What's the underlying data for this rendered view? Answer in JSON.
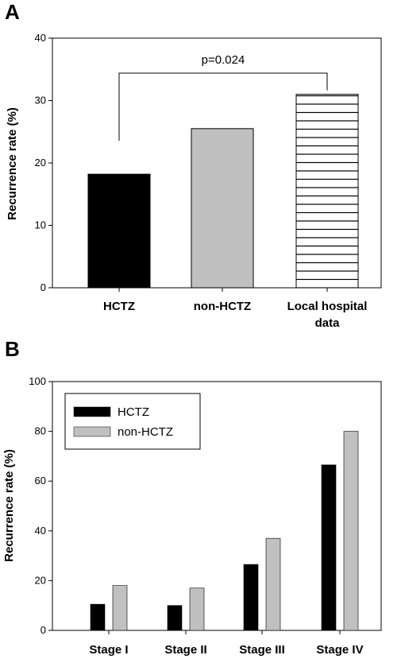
{
  "chart_data": [
    {
      "panel": "A",
      "type": "bar",
      "categories": [
        [
          "HCTZ"
        ],
        [
          "non-HCTZ"
        ],
        [
          "Local hospital",
          "data"
        ]
      ],
      "values": [
        18.2,
        25.5,
        31.0
      ],
      "colors": [
        "#000000",
        "#c0c0c0",
        "#ffffff"
      ],
      "patterns": [
        "solid",
        "solid",
        "horizontal-lines"
      ],
      "ylabel": "Recurrence rate (%)",
      "xlabel": "",
      "ylim": [
        0,
        40
      ],
      "yticks": [
        0,
        10,
        20,
        30,
        40
      ],
      "grid": false,
      "annotation": {
        "text": "p=0.024",
        "between": [
          0,
          2
        ]
      }
    },
    {
      "panel": "B",
      "type": "bar",
      "categories": [
        "Stage I",
        "Stage II",
        "Stage III",
        "Stage IV"
      ],
      "series": [
        {
          "name": "HCTZ",
          "values": [
            10.5,
            10.0,
            26.5,
            66.5
          ],
          "color": "#000000"
        },
        {
          "name": "non-HCTZ",
          "values": [
            18.0,
            17.0,
            37.0,
            80.0
          ],
          "color": "#c0c0c0"
        }
      ],
      "ylabel": "Recurrence rate (%)",
      "xlabel": "",
      "ylim": [
        0,
        100
      ],
      "yticks": [
        0,
        20,
        40,
        60,
        80,
        100
      ],
      "grid": false,
      "legend": "top-left"
    }
  ]
}
